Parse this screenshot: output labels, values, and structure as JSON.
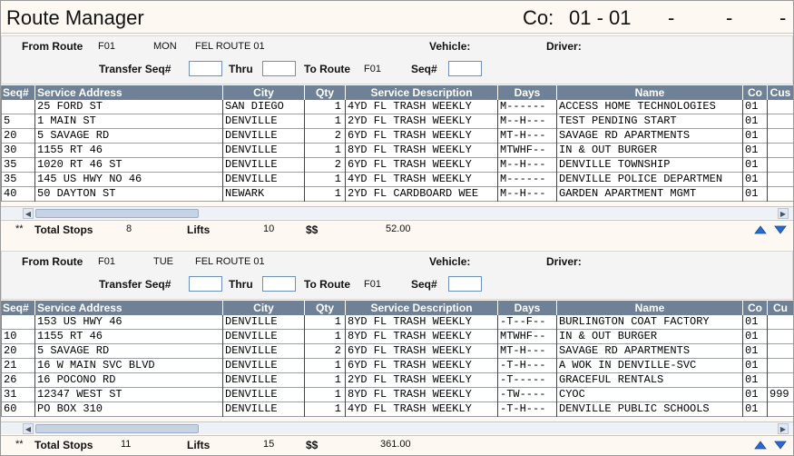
{
  "app": {
    "title": "Route Manager",
    "co_label": "Co:",
    "co_value": "01 - 01",
    "dashes": [
      "-",
      "-",
      "-"
    ]
  },
  "labels": {
    "from_route": "From Route",
    "vehicle": "Vehicle:",
    "driver": "Driver:",
    "transfer_seq": "Transfer Seq#",
    "thru": "Thru",
    "to_route": "To Route",
    "seq": "Seq#",
    "total_stops": "Total Stops",
    "lifts": "Lifts",
    "dollars": "$$",
    "stars": "**"
  },
  "columns": [
    "Seq#",
    "Service Address",
    "City",
    "Qty",
    "Service Description",
    "Days",
    "Name",
    "Co",
    "Cus"
  ],
  "columns2": [
    "Seq#",
    "Service Address",
    "City",
    "Qty",
    "Service Description",
    "Days",
    "Name",
    "Co",
    "Cu"
  ],
  "routes": [
    {
      "route_code": "F01",
      "day": "MON",
      "route_name": "FEL ROUTE 01",
      "to_route_code": "F01",
      "vehicle": "",
      "driver": "",
      "transfer_seq_from": "",
      "transfer_seq_thru": "",
      "seq": "",
      "rows": [
        {
          "seq": "",
          "address": "25 FORD ST",
          "city": "SAN DIEGO",
          "qty": "1",
          "desc": "4YD FL TRASH WEEKLY",
          "days": "M------",
          "name": "ACCESS HOME TECHNOLOGIES",
          "co": "01",
          "cus": ""
        },
        {
          "seq": "5",
          "address": "1 MAIN ST",
          "city": "DENVILLE",
          "qty": "1",
          "desc": "2YD FL TRASH WEEKLY",
          "days": "M--H---",
          "name": "TEST PENDING START",
          "co": "01",
          "cus": ""
        },
        {
          "seq": "20",
          "address": "5 SAVAGE RD",
          "city": "DENVILLE",
          "qty": "2",
          "desc": "6YD FL TRASH WEEKLY",
          "days": "MT-H---",
          "name": "SAVAGE RD APARTMENTS",
          "co": "01",
          "cus": ""
        },
        {
          "seq": "30",
          "address": "1155 RT 46",
          "city": "DENVILLE",
          "qty": "1",
          "desc": "8YD FL TRASH WEEKLY",
          "days": "MTWHF--",
          "name": "IN & OUT BURGER",
          "co": "01",
          "cus": ""
        },
        {
          "seq": "35",
          "address": "1020 RT 46 ST",
          "city": "DENVILLE",
          "qty": "2",
          "desc": "6YD FL TRASH WEEKLY",
          "days": "M--H---",
          "name": "DENVILLE TOWNSHIP",
          "co": "01",
          "cus": ""
        },
        {
          "seq": "35",
          "address": "145 US HWY NO 46",
          "city": "DENVILLE",
          "qty": "1",
          "desc": "4YD FL TRASH WEEKLY",
          "days": "M------",
          "name": "DENVILLE POLICE DEPARTMEN",
          "co": "01",
          "cus": ""
        },
        {
          "seq": "40",
          "address": "50 DAYTON ST",
          "city": "NEWARK",
          "qty": "1",
          "desc": "2YD FL CARDBOARD WEE",
          "days": "M--H---",
          "name": "GARDEN APARTMENT MGMT",
          "co": "01",
          "cus": ""
        }
      ],
      "total_stops": "8",
      "lifts": "10",
      "amount": "52.00"
    },
    {
      "route_code": "F01",
      "day": "TUE",
      "route_name": "FEL ROUTE 01",
      "to_route_code": "F01",
      "vehicle": "",
      "driver": "",
      "transfer_seq_from": "",
      "transfer_seq_thru": "",
      "seq": "",
      "rows": [
        {
          "seq": "",
          "address": "153 US HWY 46",
          "city": "DENVILLE",
          "qty": "1",
          "desc": "8YD FL TRASH WEEKLY",
          "days": "-T--F--",
          "name": "BURLINGTON COAT FACTORY",
          "co": "01",
          "cus": ""
        },
        {
          "seq": "10",
          "address": "1155 RT 46",
          "city": "DENVILLE",
          "qty": "1",
          "desc": "8YD FL TRASH WEEKLY",
          "days": "MTWHF--",
          "name": "IN & OUT BURGER",
          "co": "01",
          "cus": ""
        },
        {
          "seq": "20",
          "address": "5 SAVAGE RD",
          "city": "DENVILLE",
          "qty": "2",
          "desc": "6YD FL TRASH WEEKLY",
          "days": "MT-H---",
          "name": "SAVAGE RD APARTMENTS",
          "co": "01",
          "cus": ""
        },
        {
          "seq": "21",
          "address": "16 W MAIN SVC BLVD",
          "city": "DENVILLE",
          "qty": "1",
          "desc": "6YD FL TRASH WEEKLY",
          "days": "-T-H---",
          "name": "A WOK IN DENVILLE-SVC",
          "co": "01",
          "cus": ""
        },
        {
          "seq": "26",
          "address": "16 POCONO RD",
          "city": "DENVILLE",
          "qty": "1",
          "desc": "2YD FL TRASH WEEKLY",
          "days": "-T-----",
          "name": "GRACEFUL RENTALS",
          "co": "01",
          "cus": ""
        },
        {
          "seq": "31",
          "address": "12347 WEST ST",
          "city": "DENVILLE",
          "qty": "1",
          "desc": "8YD FL TRASH WEEKLY",
          "days": "-TW----",
          "name": "CYOC",
          "co": "01",
          "cus": "999"
        },
        {
          "seq": "60",
          "address": "PO BOX 310",
          "city": "DENVILLE",
          "qty": "1",
          "desc": "4YD FL TRASH WEEKLY",
          "days": "-T-H---",
          "name": "DENVILLE PUBLIC SCHOOLS",
          "co": "01",
          "cus": ""
        }
      ],
      "total_stops": "11",
      "lifts": "15",
      "amount": "361.00"
    }
  ],
  "icons": {
    "scroll_left": "chevron-left-icon",
    "scroll_right": "chevron-right-icon",
    "move_up": "arrow-up-icon",
    "move_down": "arrow-down-icon"
  },
  "colors": {
    "grid_header": "#6f8196",
    "background": "#fdf8f1",
    "arrow_blue": "#2a6ad0"
  }
}
